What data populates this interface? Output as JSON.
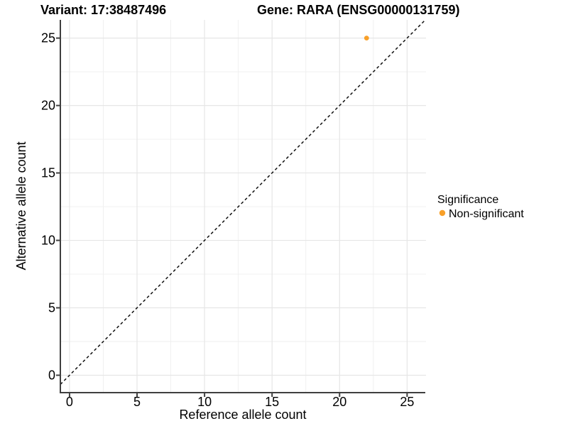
{
  "chart_data": {
    "type": "scatter",
    "titles": {
      "left": "Variant: 17:38487496",
      "right": "Gene: RARA (ENSG00000131759)"
    },
    "xlabel": "Reference allele count",
    "ylabel": "Alternative allele count",
    "x_ticks": [
      0,
      5,
      10,
      15,
      20,
      25
    ],
    "y_ticks": [
      0,
      5,
      10,
      15,
      20,
      25
    ],
    "x_minor_ticks": [
      2.5,
      7.5,
      12.5,
      17.5,
      22.5
    ],
    "y_minor_ticks": [
      2.5,
      7.5,
      12.5,
      17.5,
      22.5
    ],
    "xlim": [
      -0.68,
      26.4
    ],
    "ylim": [
      -1.29,
      26.35
    ],
    "grid": "major+minor",
    "identity_line": {
      "style": "dashed",
      "color": "#111111",
      "x1": -0.68,
      "y1": -0.68,
      "x2": 26.3,
      "y2": 26.3
    },
    "series": [
      {
        "name": "Non-significant",
        "color": "#F8A029",
        "points": [
          {
            "x": 22,
            "y": 25
          }
        ]
      }
    ],
    "legend": {
      "title": "Significance",
      "position": "right",
      "items": [
        {
          "label": "Non-significant",
          "color": "#F8A029"
        }
      ]
    },
    "colors": {
      "grid_major": "#E6E6E6",
      "grid_minor": "#EFEFEF",
      "axis": "#3F3F3F",
      "text": "#000000",
      "background": "#FFFFFF"
    }
  }
}
